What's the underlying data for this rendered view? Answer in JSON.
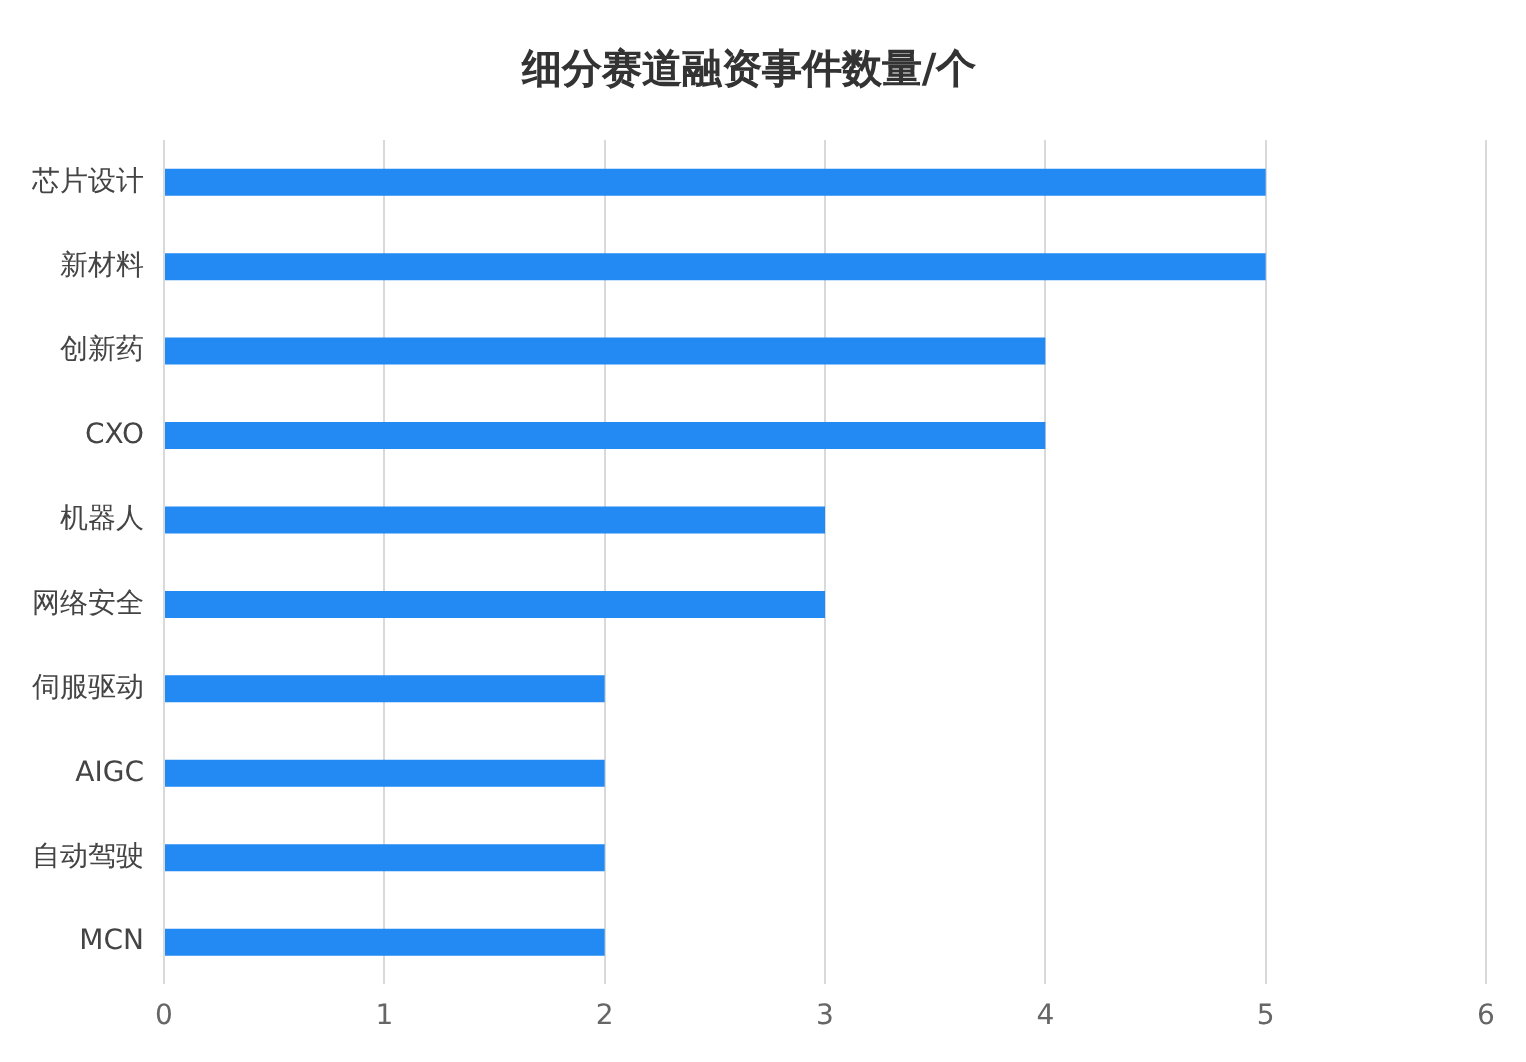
{
  "chart_data": {
    "type": "bar",
    "orientation": "horizontal",
    "title": "细分赛道融资事件数量/个",
    "categories": [
      "芯片设计",
      "新材料",
      "创新药",
      "CXO",
      "机器人",
      "网络安全",
      "伺服驱动",
      "AIGC",
      "自动驾驶",
      "MCN"
    ],
    "values": [
      5,
      5,
      4,
      4,
      3,
      3,
      2,
      2,
      2,
      2
    ],
    "color": "#2389f3",
    "xlim": [
      0,
      6
    ],
    "xticks": [
      0,
      1,
      2,
      3,
      4,
      5,
      6
    ],
    "grid": "x",
    "legend": false
  }
}
